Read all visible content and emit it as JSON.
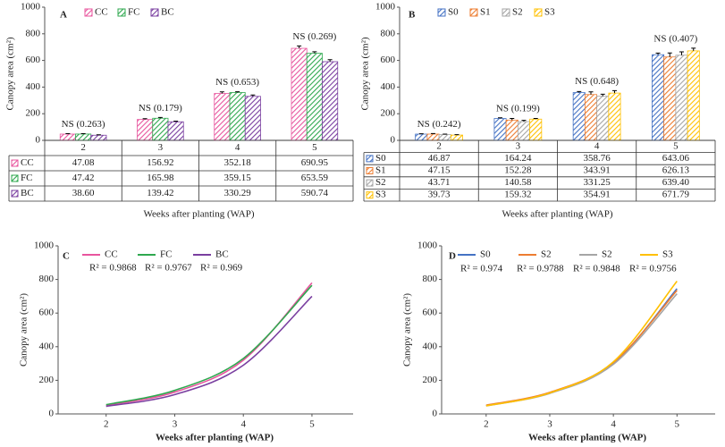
{
  "chart_data": [
    {
      "type": "bar",
      "label": "A",
      "categories": [
        "2",
        "3",
        "4",
        "5"
      ],
      "table": true,
      "series": [
        {
          "name": "CC",
          "color": "#e8559e",
          "values": [
            47.08,
            156.92,
            352.18,
            690.95
          ],
          "value_labels": [
            "47.08",
            "156.92",
            "352.18",
            "690.95"
          ],
          "errors": [
            3,
            6,
            12,
            18
          ]
        },
        {
          "name": "FC",
          "color": "#2fa84f",
          "values": [
            47.42,
            165.98,
            359.15,
            653.59
          ],
          "value_labels": [
            "47.42",
            "165.98",
            "359.15",
            "653.59"
          ],
          "errors": [
            3,
            6,
            6,
            12
          ]
        },
        {
          "name": "BC",
          "color": "#7a3fa0",
          "values": [
            38.6,
            139.42,
            330.29,
            590.74
          ],
          "value_labels": [
            "38.60",
            "139.42",
            "330.29",
            "590.74"
          ],
          "errors": [
            3,
            5,
            10,
            15
          ]
        }
      ],
      "annotations": [
        "NS (0.263)",
        "NS (0.179)",
        "NS (0.653)",
        "NS (0.269)"
      ],
      "ylim": [
        0,
        1000
      ],
      "yticks": [
        0,
        200,
        400,
        600,
        800,
        1000
      ],
      "ylabel": "Canopy area (cm²)",
      "xlabel": "Weeks after planting (WAP)"
    },
    {
      "type": "bar",
      "label": "B",
      "categories": [
        "2",
        "3",
        "4",
        "5"
      ],
      "table": true,
      "series": [
        {
          "name": "S0",
          "color": "#4472c4",
          "values": [
            46.87,
            164.24,
            358.76,
            643.06
          ],
          "value_labels": [
            "46.87",
            "164.24",
            "358.76",
            "643.06"
          ],
          "errors": [
            3,
            5,
            8,
            12
          ]
        },
        {
          "name": "S1",
          "color": "#ed7d31",
          "values": [
            47.15,
            152.28,
            343.91,
            626.13
          ],
          "value_labels": [
            "47.15",
            "152.28",
            "343.91",
            "626.13"
          ],
          "errors": [
            4,
            12,
            20,
            30
          ]
        },
        {
          "name": "S2",
          "color": "#a5a5a5",
          "values": [
            43.71,
            140.58,
            331.25,
            639.4
          ],
          "value_labels": [
            "43.71",
            "140.58",
            "331.25",
            "639.40"
          ],
          "errors": [
            3,
            10,
            15,
            25
          ]
        },
        {
          "name": "S3",
          "color": "#ffc000",
          "values": [
            39.73,
            159.32,
            354.91,
            671.79
          ],
          "value_labels": [
            "39.73",
            "159.32",
            "354.91",
            "671.79"
          ],
          "errors": [
            3,
            5,
            18,
            20
          ]
        }
      ],
      "annotations": [
        "NS (0.242)",
        "NS (0.199)",
        "NS (0.648)",
        "NS (0.407)"
      ],
      "ylim": [
        0,
        1000
      ],
      "yticks": [
        0,
        200,
        400,
        600,
        800,
        1000
      ],
      "ylabel": "Canopy area (cm²)",
      "xlabel": "Weeks after planting (WAP)"
    },
    {
      "type": "line",
      "label": "C",
      "x": [
        2,
        3,
        4,
        5
      ],
      "series": [
        {
          "name": "CC",
          "color": "#e8559e",
          "values": [
            50,
            130,
            320,
            780
          ]
        },
        {
          "name": "FC",
          "color": "#2fa84f",
          "values": [
            55,
            140,
            330,
            765
          ]
        },
        {
          "name": "BC",
          "color": "#7a3fa0",
          "values": [
            45,
            115,
            290,
            700
          ]
        }
      ],
      "annotations": [
        "R² = 0.9868",
        "R² = 0.9767",
        "R² = 0.969"
      ],
      "xlim": [
        1.3,
        5.6
      ],
      "xticks": [
        2,
        3,
        4,
        5
      ],
      "ylim": [
        0,
        1000
      ],
      "yticks": [
        0,
        200,
        400,
        600,
        800,
        1000
      ],
      "ylabel": "Canopy area (cm²)",
      "xlabel": "Weeks after planting (WAP)"
    },
    {
      "type": "line",
      "label": "D",
      "x": [
        2,
        3,
        4,
        5
      ],
      "series": [
        {
          "name": "S0",
          "color": "#4472c4",
          "values": [
            50,
            125,
            300,
            745
          ]
        },
        {
          "name": "S2",
          "color": "#ed7d31",
          "values": [
            52,
            128,
            305,
            735
          ]
        },
        {
          "name": "S2",
          "color": "#a5a5a5",
          "values": [
            48,
            122,
            295,
            715
          ]
        },
        {
          "name": "S3",
          "color": "#ffc000",
          "values": [
            48,
            125,
            310,
            790
          ]
        }
      ],
      "annotations": [
        "R² = 0.974",
        "R² = 0.9788",
        "R² = 0.9848",
        "R² = 0.9756"
      ],
      "xlim": [
        1.3,
        5.6
      ],
      "xticks": [
        2,
        3,
        4,
        5
      ],
      "ylim": [
        0,
        1000
      ],
      "yticks": [
        0,
        200,
        400,
        600,
        800,
        1000
      ],
      "ylabel": "Canopy area (cm²)",
      "xlabel": "Weeks after planting (WAP)"
    }
  ]
}
